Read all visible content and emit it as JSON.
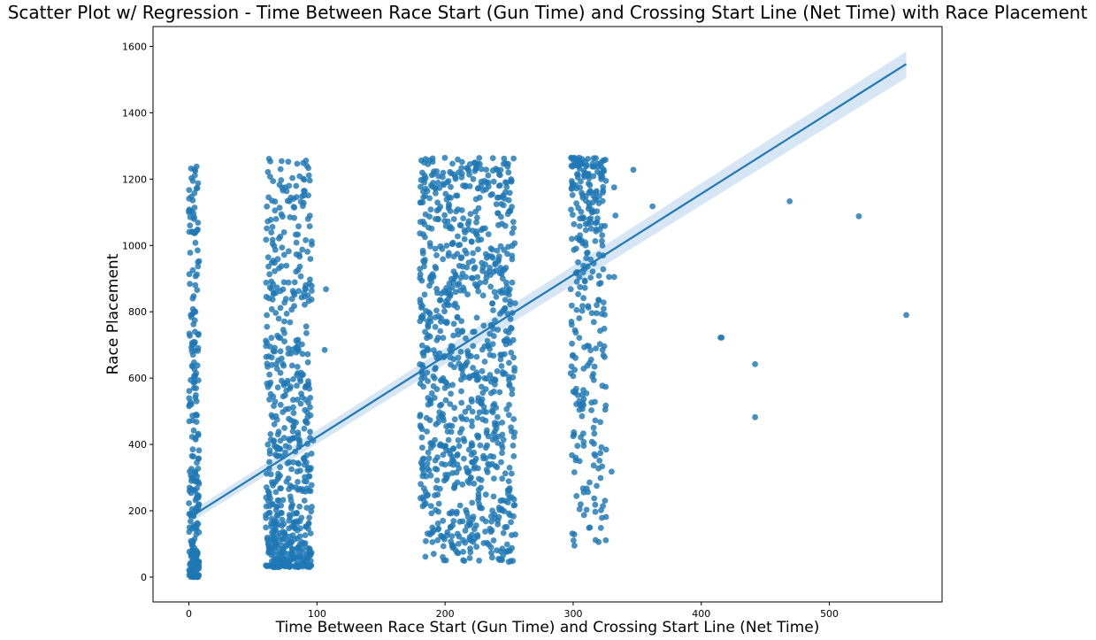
{
  "chart_data": {
    "type": "scatter",
    "title": "Scatter Plot w/ Regression - Time Between Race Start (Gun Time) and Crossing Start Line (Net Time) with Race Placement",
    "xlabel": "Time Between Race Start (Gun Time) and Crossing Start Line (Net Time)",
    "ylabel": "Race Placement",
    "xlim": [
      -28,
      588
    ],
    "ylim": [
      -75,
      1660
    ],
    "xticks": [
      0,
      100,
      200,
      300,
      400,
      500
    ],
    "yticks": [
      0,
      200,
      400,
      600,
      800,
      1000,
      1200,
      1400,
      1600
    ],
    "grid": false,
    "legend": "none",
    "point_color": "#1f77b4",
    "band_color": "#c6dbef",
    "regression": {
      "x": [
        0,
        560
      ],
      "y": [
        178,
        1547
      ],
      "ci_start": [
        162,
        194
      ],
      "ci_end": [
        1505,
        1585
      ]
    },
    "clusters": [
      {
        "x_range": [
          0,
          8
        ],
        "y_min": 0,
        "y_max": 1240,
        "count": 240,
        "skew": "low"
      },
      {
        "x_range": [
          60,
          96
        ],
        "y_min": 30,
        "y_max": 1262,
        "count": 620,
        "skew": "low"
      },
      {
        "x_range": [
          180,
          255
        ],
        "y_min": 45,
        "y_max": 1265,
        "count": 950,
        "skew": "uniform"
      },
      {
        "x_range": [
          298,
          326
        ],
        "y_min": 90,
        "y_max": 1265,
        "count": 300,
        "skew": "high"
      }
    ],
    "outliers": [
      {
        "x": 0,
        "y": 1105
      },
      {
        "x": 1,
        "y": 1085
      },
      {
        "x": 4,
        "y": 1080
      },
      {
        "x": 5,
        "y": 1225
      },
      {
        "x": 6,
        "y": 1238
      },
      {
        "x": 5,
        "y": 880
      },
      {
        "x": 3,
        "y": 840
      },
      {
        "x": 2,
        "y": 692
      },
      {
        "x": 5,
        "y": 608
      },
      {
        "x": 6,
        "y": 530
      },
      {
        "x": 6,
        "y": 468
      },
      {
        "x": 5,
        "y": 420
      },
      {
        "x": 3,
        "y": 385
      },
      {
        "x": 5,
        "y": 310
      },
      {
        "x": 2,
        "y": 290
      },
      {
        "x": 107,
        "y": 868
      },
      {
        "x": 106,
        "y": 685
      },
      {
        "x": 97,
        "y": 412
      },
      {
        "x": 347,
        "y": 1228
      },
      {
        "x": 362,
        "y": 1118
      },
      {
        "x": 333,
        "y": 1090
      },
      {
        "x": 332,
        "y": 905
      },
      {
        "x": 328,
        "y": 905
      },
      {
        "x": 325,
        "y": 505
      },
      {
        "x": 330,
        "y": 318
      },
      {
        "x": 301,
        "y": 95
      },
      {
        "x": 302,
        "y": 352
      },
      {
        "x": 302,
        "y": 360
      },
      {
        "x": 300,
        "y": 425
      },
      {
        "x": 332,
        "y": 1175
      },
      {
        "x": 416,
        "y": 722
      },
      {
        "x": 415,
        "y": 722
      },
      {
        "x": 442,
        "y": 642
      },
      {
        "x": 442,
        "y": 482
      },
      {
        "x": 469,
        "y": 1133
      },
      {
        "x": 523,
        "y": 1088
      },
      {
        "x": 560,
        "y": 790
      }
    ]
  }
}
